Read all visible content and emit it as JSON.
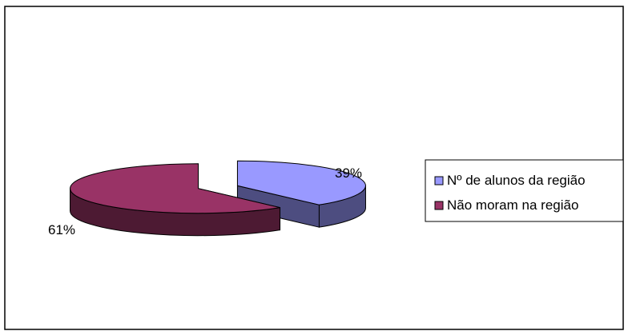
{
  "chart_data": {
    "type": "pie",
    "variant": "3d-exploded",
    "title": "",
    "slices": [
      {
        "name": "Nº de alunos da região",
        "value": 39,
        "label": "39%",
        "color": "#9999ff",
        "side_color": "#4d4d80"
      },
      {
        "name": "Não moram na região",
        "value": 61,
        "label": "61%",
        "color": "#993366",
        "side_color": "#4d1a33"
      }
    ],
    "legend": {
      "position": "right"
    }
  }
}
